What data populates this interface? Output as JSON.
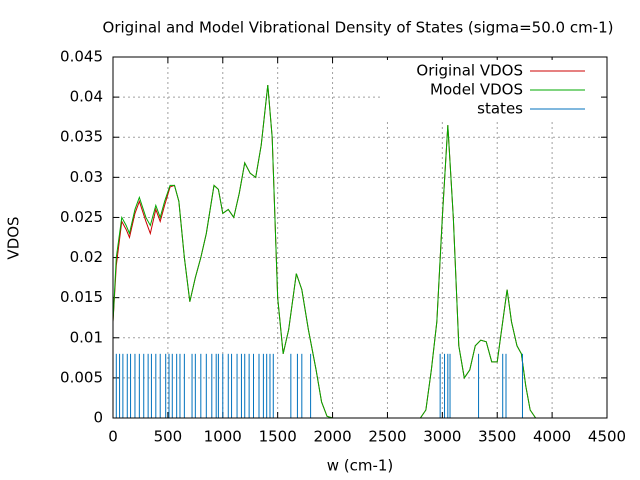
{
  "chart_data": {
    "type": "line",
    "title": "Original and Model Vibrational Density of States (sigma=50.0 cm-1)",
    "x_label": "w (cm-1)",
    "y_label": "VDOS",
    "xlim": [
      0,
      4500
    ],
    "ylim": [
      0,
      0.045
    ],
    "xticks": [
      0,
      500,
      1000,
      1500,
      2000,
      2500,
      3000,
      3500,
      4000,
      4500
    ],
    "yticks": [
      0,
      0.005,
      0.01,
      0.015,
      0.02,
      0.025,
      0.03,
      0.035,
      0.04,
      0.045
    ],
    "grid": true,
    "legend": "top-right",
    "series": [
      {
        "name": "Original VDOS",
        "color": "#cc0000",
        "type": "line",
        "x": [
          0,
          30,
          80,
          120,
          150,
          200,
          240,
          300,
          340,
          390,
          430,
          470,
          520,
          560,
          600,
          650,
          700,
          750,
          800,
          850,
          920,
          960,
          1000,
          1050,
          1100,
          1150,
          1200,
          1250,
          1300,
          1350,
          1410,
          1450,
          1500,
          1550,
          1600,
          1670,
          1720,
          1780,
          1850,
          1900,
          1950,
          2000,
          2800,
          2850,
          2900,
          2950,
          3000,
          3050,
          3100,
          3150,
          3200,
          3250,
          3300,
          3350,
          3400,
          3450,
          3500,
          3550,
          3590,
          3630,
          3680,
          3720,
          3760,
          3800,
          3850,
          3900
        ],
        "values": [
          0.012,
          0.019,
          0.0245,
          0.0235,
          0.0225,
          0.0255,
          0.027,
          0.0245,
          0.023,
          0.026,
          0.0245,
          0.0265,
          0.0288,
          0.029,
          0.027,
          0.02,
          0.0145,
          0.0175,
          0.02,
          0.023,
          0.029,
          0.0285,
          0.0255,
          0.026,
          0.025,
          0.028,
          0.0318,
          0.0305,
          0.03,
          0.034,
          0.0415,
          0.035,
          0.015,
          0.008,
          0.011,
          0.018,
          0.016,
          0.011,
          0.006,
          0.002,
          0.0002,
          0,
          0,
          0.001,
          0.006,
          0.012,
          0.025,
          0.0365,
          0.025,
          0.009,
          0.005,
          0.006,
          0.009,
          0.0097,
          0.0095,
          0.007,
          0.007,
          0.012,
          0.016,
          0.012,
          0.009,
          0.008,
          0.004,
          0.001,
          0,
          0
        ]
      },
      {
        "name": "Model VDOS",
        "color": "#00aa00",
        "type": "line",
        "x": [
          0,
          30,
          80,
          120,
          150,
          200,
          240,
          300,
          340,
          390,
          430,
          470,
          520,
          560,
          600,
          650,
          700,
          750,
          800,
          850,
          920,
          960,
          1000,
          1050,
          1100,
          1150,
          1200,
          1250,
          1300,
          1350,
          1410,
          1450,
          1500,
          1550,
          1600,
          1670,
          1720,
          1780,
          1850,
          1900,
          1950,
          2000,
          2800,
          2850,
          2900,
          2950,
          3000,
          3050,
          3100,
          3150,
          3200,
          3250,
          3300,
          3350,
          3400,
          3450,
          3500,
          3550,
          3590,
          3630,
          3680,
          3720,
          3760,
          3800,
          3850,
          3900
        ],
        "values": [
          0.012,
          0.02,
          0.025,
          0.024,
          0.023,
          0.026,
          0.0275,
          0.025,
          0.024,
          0.0265,
          0.025,
          0.027,
          0.029,
          0.029,
          0.027,
          0.02,
          0.0145,
          0.0175,
          0.02,
          0.023,
          0.029,
          0.0285,
          0.0255,
          0.026,
          0.025,
          0.028,
          0.0318,
          0.0305,
          0.03,
          0.034,
          0.0415,
          0.035,
          0.015,
          0.008,
          0.011,
          0.018,
          0.016,
          0.011,
          0.006,
          0.002,
          0.0002,
          0,
          0,
          0.001,
          0.006,
          0.012,
          0.025,
          0.0365,
          0.025,
          0.009,
          0.005,
          0.006,
          0.009,
          0.0097,
          0.0095,
          0.007,
          0.007,
          0.012,
          0.016,
          0.012,
          0.009,
          0.008,
          0.004,
          0.001,
          0,
          0
        ]
      },
      {
        "name": "states",
        "color": "#0072bd",
        "type": "impulses",
        "x": [
          30,
          60,
          90,
          130,
          160,
          200,
          240,
          280,
          320,
          350,
          390,
          430,
          480,
          510,
          540,
          580,
          610,
          650,
          720,
          750,
          800,
          850,
          900,
          940,
          960,
          1000,
          1050,
          1080,
          1130,
          1170,
          1200,
          1240,
          1280,
          1330,
          1370,
          1400,
          1430,
          1460,
          1620,
          1680,
          1720,
          1800,
          2980,
          3020,
          3050,
          3070,
          3330,
          3550,
          3580,
          3730
        ],
        "values": [
          0.008,
          0.008,
          0.008,
          0.008,
          0.008,
          0.008,
          0.008,
          0.008,
          0.008,
          0.008,
          0.008,
          0.008,
          0.008,
          0.008,
          0.008,
          0.008,
          0.008,
          0.008,
          0.008,
          0.008,
          0.008,
          0.008,
          0.008,
          0.008,
          0.008,
          0.008,
          0.008,
          0.008,
          0.008,
          0.008,
          0.008,
          0.008,
          0.008,
          0.008,
          0.008,
          0.008,
          0.008,
          0.008,
          0.008,
          0.008,
          0.008,
          0.008,
          0.008,
          0.008,
          0.008,
          0.008,
          0.008,
          0.008,
          0.008,
          0.008
        ]
      }
    ]
  }
}
